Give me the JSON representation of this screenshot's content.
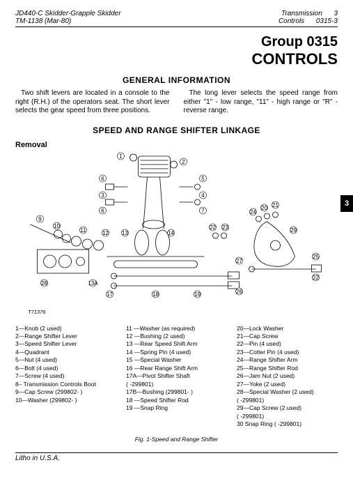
{
  "header": {
    "product": "JD440-C Skidder-Grapple Skidder",
    "manual": "TM-1138   (Mar-80)",
    "section": "Transmission",
    "subsection": "Controls",
    "page_num": "3",
    "page_code": "0315-3"
  },
  "group": {
    "line1": "Group 0315",
    "line2": "CONTROLS"
  },
  "general_title": "GENERAL INFORMATION",
  "paragraphs": {
    "left": "Two shift levers are located in a console to the right (R.H.) of the operators seat. The short lever selects the gear speed from three positions.",
    "right": "The long lever selects the speed range from either \"1\" - low range, \"11\" - high range or \"R\" - reverse range."
  },
  "section_title": "SPEED AND RANGE SHIFTER LINKAGE",
  "subheading": "Removal",
  "tab_label": "3",
  "diagram": {
    "plate_no": "T71376",
    "callouts": [
      "1",
      "2",
      "3",
      "4",
      "5",
      "6",
      "7",
      "8",
      "9",
      "10",
      "11",
      "12",
      "13",
      "13A",
      "14",
      "15",
      "16",
      "17",
      "17A",
      "17B",
      "18",
      "19",
      "20",
      "21",
      "22",
      "23",
      "24",
      "25",
      "26",
      "27",
      "28",
      "29"
    ]
  },
  "legend": {
    "col1": [
      "1—Knob (2 used)",
      "2—Range Shifter Lever",
      "3—Speed Shifter Lever",
      "4—Quadrant",
      "5—Nut (4 used)",
      "6—Bolt (4 used)",
      "7—Screw (4 used)",
      "8– Transmission Controls Boot",
      "9—Cap Screw (299802-        )",
      "10—Washer (299802-        )"
    ],
    "col2": [
      "11 —Washer (as required)",
      "12 —Bushing (2 used)",
      "13 —Rear Speed Shift Arm",
      "14 —Spring Pin (4 used)",
      "15 —Special Washer",
      "16 —Rear Range Shift Arm",
      "17A—Pivot Shifter Shaft",
      "(            -299801)",
      "17B—Bushing (299801-        )",
      "18 —Speed Shifter Rod",
      "19 —Snap Ring"
    ],
    "col3": [
      "20—Lock Washer",
      "21—Cap Screw",
      "22—Pin (4 used)",
      "23—Cotter Pin (4 used)",
      "24—Range Shifter Arm",
      "25—Range Shifter Rod",
      "26—Jam Nut (2 used)",
      "27—Yoke (2 used)",
      "28—Special Washer (2 used)",
      "(            -299801)",
      "29—Cap Screw (2 used)",
      "(            -299801)",
      "30   Snap Ring (        -299801)"
    ]
  },
  "fig_caption": "Fig. 1-Speed and Range Shifter",
  "footer": "Litho in U.S.A."
}
